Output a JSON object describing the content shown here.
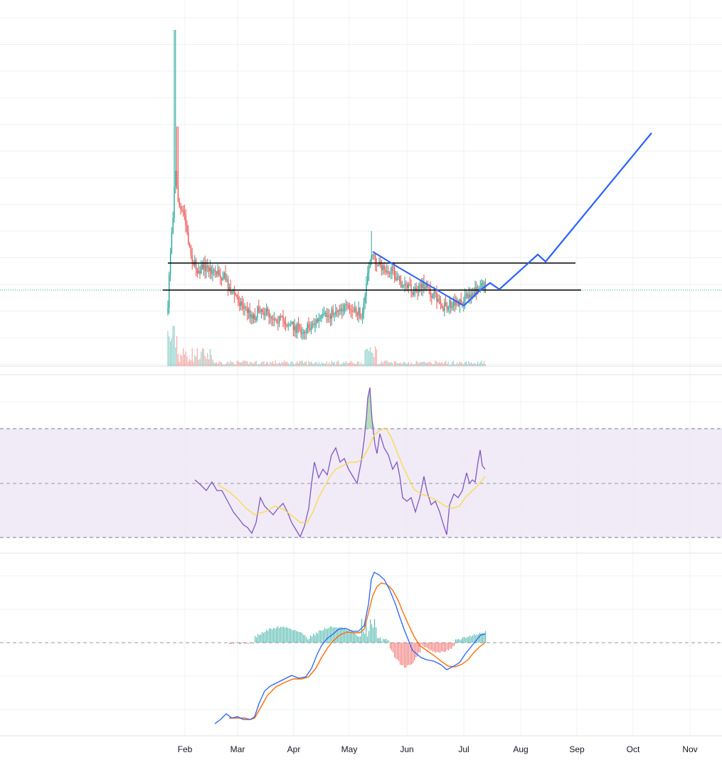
{
  "chart_data": {
    "type": "candlestick",
    "time_axis": {
      "labels": [
        "Feb",
        "Mar",
        "Apr",
        "May",
        "Jun",
        "Jul",
        "Aug",
        "Sep",
        "Oct",
        "Nov"
      ]
    },
    "colors": {
      "up": "#26a69a",
      "down": "#ef5350",
      "grid": "#eef0f3",
      "pane_border": "#e0e3eb",
      "hline": "#000000",
      "trendline": "#2962ff",
      "price_line": "#26a69a",
      "rsi": "#7e57c2",
      "rsi_ma": "#fdd835",
      "rsi_band": "#ede7f6",
      "macd": "#2962ff",
      "macd_signal": "#ff6d00",
      "zero_line": "#9598a1"
    },
    "price_pane": {
      "y_axis_labels": "none",
      "horizontal_levels": [
        "upper",
        "lower"
      ],
      "drawings": [
        "descending-trendline",
        "projection-path"
      ],
      "candles_shown": "Jan 29 – Jul 14"
    },
    "rsi_pane": {
      "band": [
        30,
        70
      ],
      "mid": 50,
      "series": [
        "rsi",
        "rsi-ma"
      ]
    },
    "macd_pane": {
      "series": [
        "macd",
        "signal",
        "histogram"
      ],
      "zero_line": true
    },
    "grid": true,
    "legend": "none"
  }
}
